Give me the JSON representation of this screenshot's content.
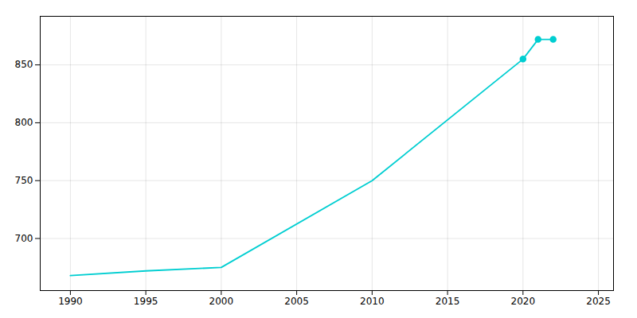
{
  "chart_data": {
    "type": "line",
    "x": [
      1990,
      1995,
      2000,
      2010,
      2020,
      2021,
      2022
    ],
    "series": [
      {
        "type": "line",
        "color": "#00CED1",
        "values": [
          668,
          672,
          675,
          750,
          855,
          872,
          872
        ]
      },
      {
        "type": "scatter",
        "marker": "circle",
        "color": "#00CED1",
        "values": [
          null,
          null,
          null,
          null,
          855,
          872,
          872
        ]
      }
    ],
    "xlim": [
      1988,
      2026
    ],
    "xticks": [
      1990,
      1995,
      2000,
      2005,
      2010,
      2015,
      2020,
      2025
    ],
    "ylim": [
      655,
      892
    ],
    "yticks": [
      700,
      750,
      800,
      850
    ],
    "grid": true
  }
}
